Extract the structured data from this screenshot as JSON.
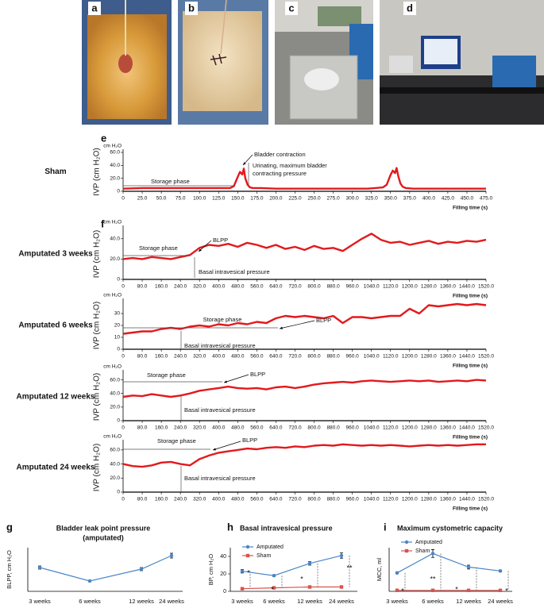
{
  "photos": [
    {
      "label": "a"
    },
    {
      "label": "b"
    },
    {
      "label": "c"
    },
    {
      "label": "d"
    }
  ],
  "chart_data": [
    {
      "type": "line",
      "panel": "e",
      "row_label": "Sham",
      "ylabel": "IVP (cm H₂O)",
      "yunit": "cm H₂O",
      "xlabel": "Filling time (s)",
      "color": "#e3191c",
      "x": [
        0,
        25,
        50,
        75,
        100,
        125,
        140,
        145,
        150,
        153,
        156,
        158,
        160,
        163,
        166,
        170,
        180,
        200,
        225,
        250,
        275,
        300,
        320,
        330,
        340,
        345,
        350,
        353,
        356,
        358,
        360,
        363,
        366,
        370,
        380,
        400,
        425,
        450,
        475
      ],
      "values": [
        4,
        5,
        5,
        5,
        5,
        5,
        5,
        8,
        22,
        30,
        26,
        35,
        20,
        10,
        6,
        5,
        5,
        4,
        4,
        4,
        4,
        4,
        4,
        5,
        6,
        10,
        25,
        32,
        28,
        36,
        24,
        12,
        7,
        5,
        4,
        4,
        4,
        4,
        4
      ],
      "xlim": [
        0,
        475
      ],
      "xticks": [
        0,
        {
          "value": 25,
          "label": "25.0"
        },
        {
          "value": 50,
          "label": "50.0"
        },
        {
          "value": 75,
          "label": "75.0"
        },
        {
          "value": 100,
          "label": "100.0"
        },
        {
          "value": 125,
          "label": "125.0"
        },
        {
          "value": 150,
          "label": "150.0"
        },
        {
          "value": 175,
          "label": "175.0"
        },
        {
          "value": 200,
          "label": "200.0"
        },
        {
          "value": 225,
          "label": "225.0"
        },
        {
          "value": 250,
          "label": "250.0"
        },
        {
          "value": 275,
          "label": "275.0"
        },
        {
          "value": 300,
          "label": "300.0"
        },
        {
          "value": 325,
          "label": "325.0"
        },
        {
          "value": 350,
          "label": "350.0"
        },
        {
          "value": 375,
          "label": "375.0"
        },
        {
          "value": 400,
          "label": "400.0"
        },
        {
          "value": 425,
          "label": "425.0"
        },
        {
          "value": 450,
          "label": "450.0"
        },
        {
          "value": 475,
          "label": "475.0"
        }
      ],
      "ylim": [
        0,
        60
      ],
      "yticks": [
        0,
        {
          "value": 20,
          "label": "20.0"
        },
        {
          "value": 40,
          "label": "40.0"
        },
        {
          "value": 60,
          "label": "60.0"
        }
      ],
      "annotations": [
        "Bladder contraction",
        "Urinating, maximum bladder",
        "contracting pressure",
        "Storage phase"
      ]
    },
    {
      "type": "line",
      "panel": "f",
      "row_label": "Amputated 3 weeks",
      "ylabel": "IVP (cm H₂O)",
      "yunit": "cm H₂O",
      "xlabel": "Filling time (s)",
      "color": "#e3191c",
      "x": [
        0,
        40,
        80,
        120,
        160,
        200,
        240,
        280,
        320,
        360,
        400,
        440,
        480,
        520,
        560,
        600,
        640,
        680,
        720,
        760,
        800,
        840,
        880,
        920,
        960,
        1000,
        1040,
        1080,
        1120,
        1160,
        1200,
        1240,
        1280,
        1320,
        1360,
        1400,
        1440,
        1480,
        1520
      ],
      "values": [
        20,
        21,
        20,
        22,
        21,
        20,
        22,
        24,
        31,
        34,
        33,
        35,
        32,
        36,
        34,
        31,
        34,
        30,
        32,
        29,
        33,
        30,
        31,
        28,
        34,
        40,
        45,
        39,
        36,
        37,
        34,
        36,
        38,
        35,
        37,
        36,
        38,
        37,
        39
      ],
      "xlim": [
        0,
        1520
      ],
      "xticks": [
        0,
        {
          "value": 80,
          "label": "80.0"
        },
        {
          "value": 160,
          "label": "160.0"
        },
        {
          "value": 240,
          "label": "240.0"
        },
        {
          "value": 320,
          "label": "320.0"
        },
        {
          "value": 400,
          "label": "400.0"
        },
        {
          "value": 480,
          "label": "480.0"
        },
        {
          "value": 560,
          "label": "560.0"
        },
        {
          "value": 640,
          "label": "640.0"
        },
        {
          "value": 720,
          "label": "720.0"
        },
        {
          "value": 800,
          "label": "800.0"
        },
        {
          "value": 880,
          "label": "880.0"
        },
        {
          "value": 960,
          "label": "960.0"
        },
        {
          "value": 1040,
          "label": "1040.0"
        },
        {
          "value": 1120,
          "label": "1120.0"
        },
        {
          "value": 1200,
          "label": "1200.0"
        },
        {
          "value": 1280,
          "label": "1280.0"
        },
        {
          "value": 1360,
          "label": "1360.0"
        },
        {
          "value": 1440,
          "label": "1440.0"
        },
        {
          "value": 1520,
          "label": "1520.0"
        }
      ],
      "ylim": [
        0,
        50
      ],
      "yticks": [
        0,
        {
          "value": 20,
          "label": "20.0"
        },
        {
          "value": 40,
          "label": "40.0"
        }
      ],
      "annotations": [
        "Storage phase",
        "BLPP",
        "Basal intravesical pressure"
      ]
    },
    {
      "type": "line",
      "row_label": "Amputated 6 weeks",
      "ylabel": "IVP (cm H₂O)",
      "yunit": "cm H₂O",
      "xlabel": "Filling time (s)",
      "color": "#e3191c",
      "x": [
        0,
        40,
        80,
        120,
        160,
        200,
        240,
        280,
        320,
        360,
        400,
        440,
        480,
        520,
        560,
        600,
        640,
        680,
        720,
        760,
        800,
        840,
        880,
        920,
        960,
        1000,
        1040,
        1080,
        1120,
        1160,
        1200,
        1240,
        1280,
        1320,
        1360,
        1400,
        1440,
        1480,
        1520
      ],
      "values": [
        13,
        14,
        15,
        15,
        17,
        18,
        17,
        19,
        20,
        19,
        21,
        20,
        22,
        21,
        23,
        22,
        26,
        28,
        27,
        28,
        27,
        26,
        28,
        22,
        27,
        27,
        26,
        27,
        28,
        28,
        34,
        30,
        37,
        36,
        37,
        38,
        37,
        38,
        37
      ],
      "xlim": [
        0,
        1520
      ],
      "xticks": [
        0,
        {
          "value": 80,
          "label": "80.0"
        },
        {
          "value": 160,
          "label": "160.0"
        },
        {
          "value": 240,
          "label": "240.0"
        },
        {
          "value": 320,
          "label": "320.0"
        },
        {
          "value": 400,
          "label": "400.0"
        },
        {
          "value": 480,
          "label": "480.0"
        },
        {
          "value": 560,
          "label": "560.0"
        },
        {
          "value": 640,
          "label": "640.0"
        },
        {
          "value": 720,
          "label": "720.0"
        },
        {
          "value": 800,
          "label": "800.0"
        },
        {
          "value": 880,
          "label": "880.0"
        },
        {
          "value": 960,
          "label": "960.0"
        },
        {
          "value": 1040,
          "label": "1040.0"
        },
        {
          "value": 1120,
          "label": "1120.0"
        },
        {
          "value": 1200,
          "label": "1200.0"
        },
        {
          "value": 1280,
          "label": "1280.0"
        },
        {
          "value": 1360,
          "label": "1360.0"
        },
        {
          "value": 1440,
          "label": "1440.0"
        },
        {
          "value": 1520,
          "label": "1520.0"
        }
      ],
      "ylim": [
        0,
        40
      ],
      "yticks": [
        0,
        10,
        20,
        30
      ],
      "annotations": [
        "Storage phase",
        "BLPP",
        "Basal intravesical pressure"
      ]
    },
    {
      "type": "line",
      "row_label": "Amputated 12 weeks",
      "ylabel": "IVP (cm H₂O)",
      "yunit": "cm H₂O",
      "xlabel": "Filling time (s)",
      "color": "#e3191c",
      "x": [
        0,
        40,
        80,
        120,
        160,
        200,
        240,
        280,
        320,
        360,
        400,
        440,
        480,
        520,
        560,
        600,
        640,
        680,
        720,
        760,
        800,
        840,
        880,
        920,
        960,
        1000,
        1040,
        1080,
        1120,
        1160,
        1200,
        1240,
        1280,
        1320,
        1360,
        1400,
        1440,
        1480,
        1520
      ],
      "values": [
        35,
        37,
        36,
        39,
        37,
        35,
        37,
        40,
        44,
        46,
        48,
        50,
        48,
        47,
        48,
        46,
        49,
        50,
        48,
        50,
        53,
        55,
        56,
        57,
        56,
        58,
        59,
        58,
        57,
        58,
        59,
        58,
        59,
        57,
        58,
        59,
        58,
        60,
        59
      ],
      "xlim": [
        0,
        1520
      ],
      "xticks": [
        0,
        {
          "value": 80,
          "label": "80.0"
        },
        {
          "value": 160,
          "label": "160.0"
        },
        {
          "value": 240,
          "label": "240.0"
        },
        {
          "value": 320,
          "label": "320.0"
        },
        {
          "value": 400,
          "label": "400.0"
        },
        {
          "value": 480,
          "label": "480.0"
        },
        {
          "value": 560,
          "label": "560.0"
        },
        {
          "value": 640,
          "label": "640.0"
        },
        {
          "value": 720,
          "label": "720.0"
        },
        {
          "value": 800,
          "label": "800.0"
        },
        {
          "value": 880,
          "label": "880.0"
        },
        {
          "value": 960,
          "label": "960.0"
        },
        {
          "value": 1040,
          "label": "1040.0"
        },
        {
          "value": 1120,
          "label": "1120.0"
        },
        {
          "value": 1200,
          "label": "1200.0"
        },
        {
          "value": 1280,
          "label": "1280.0"
        },
        {
          "value": 1360,
          "label": "1360.0"
        },
        {
          "value": 1440,
          "label": "1440.0"
        },
        {
          "value": 1520,
          "label": "1520.0"
        }
      ],
      "ylim": [
        0,
        70
      ],
      "yticks": [
        0,
        {
          "value": 20,
          "label": "20.0"
        },
        {
          "value": 40,
          "label": "40.0"
        },
        {
          "value": 60,
          "label": "60.0"
        }
      ],
      "annotations": [
        "Storage phase",
        "BLPP",
        "Basal intravesical pressure"
      ]
    },
    {
      "type": "line",
      "row_label": "Amputated 24 weeks",
      "ylabel": "IVP (cm H₂O)",
      "yunit": "cm H₂O",
      "xlabel": "Filling time (s)",
      "color": "#e3191c",
      "x": [
        0,
        40,
        80,
        120,
        160,
        200,
        240,
        280,
        320,
        360,
        400,
        440,
        480,
        520,
        560,
        600,
        640,
        680,
        720,
        760,
        800,
        840,
        880,
        920,
        960,
        1000,
        1040,
        1080,
        1120,
        1160,
        1200,
        1240,
        1280,
        1320,
        1360,
        1400,
        1440,
        1480,
        1520
      ],
      "values": [
        40,
        37,
        36,
        38,
        42,
        43,
        40,
        38,
        47,
        52,
        56,
        58,
        60,
        62,
        61,
        63,
        64,
        63,
        65,
        64,
        66,
        67,
        66,
        68,
        67,
        66,
        67,
        66,
        67,
        66,
        65,
        66,
        67,
        66,
        67,
        66,
        67,
        68,
        68
      ],
      "xlim": [
        0,
        1520
      ],
      "xticks": [
        0,
        {
          "value": 80,
          "label": "80.0"
        },
        {
          "value": 160,
          "label": "160.0"
        },
        {
          "value": 240,
          "label": "240.0"
        },
        {
          "value": 320,
          "label": "320.0"
        },
        {
          "value": 400,
          "label": "400.0"
        },
        {
          "value": 480,
          "label": "480.0"
        },
        {
          "value": 560,
          "label": "560.0"
        },
        {
          "value": 640,
          "label": "640.0"
        },
        {
          "value": 720,
          "label": "720.0"
        },
        {
          "value": 800,
          "label": "800.0"
        },
        {
          "value": 880,
          "label": "880.0"
        },
        {
          "value": 960,
          "label": "960.0"
        },
        {
          "value": 1040,
          "label": "1040.0"
        },
        {
          "value": 1120,
          "label": "1120.0"
        },
        {
          "value": 1200,
          "label": "1200.0"
        },
        {
          "value": 1280,
          "label": "1280.0"
        },
        {
          "value": 1360,
          "label": "1360.0"
        },
        {
          "value": 1440,
          "label": "1440.0"
        },
        {
          "value": 1520,
          "label": "1520.0"
        }
      ],
      "ylim": [
        0,
        70
      ],
      "yticks": [
        0,
        {
          "value": 20,
          "label": "20.0"
        },
        {
          "value": 40,
          "label": "40.0"
        },
        {
          "value": 60,
          "label": "60.0"
        }
      ],
      "annotations": [
        "Storage phase",
        "BLPP",
        "Basal intravesical pressure"
      ]
    },
    {
      "type": "line",
      "panel": "g",
      "title": "Bladder leak point pressure",
      "subtitle": "(amputated)",
      "ylabel": "BLPP, cm H₂O",
      "categories": [
        "3 weeks",
        "6 weeks",
        "12 weeks",
        "24 weeks"
      ],
      "series": [
        {
          "color": "#4a86c8",
          "values": [
            30,
            13,
            28,
            45
          ],
          "errors": [
            2,
            1,
            2,
            3
          ]
        }
      ],
      "ylim": [
        0,
        55
      ]
    },
    {
      "type": "line",
      "panel": "h",
      "title": "Basal intravesical pressure",
      "ylabel": "BP, cm H₂O",
      "categories": [
        "3 weeks",
        "6 weeks",
        "12 weeks",
        "24 weeks"
      ],
      "series": [
        {
          "name": "Amputated",
          "color": "#4a86c8",
          "values": [
            23,
            18,
            32,
            41
          ],
          "errors": [
            2,
            1,
            2,
            3
          ]
        },
        {
          "name": "Sham",
          "color": "#d9534f",
          "values": [
            3,
            4,
            5,
            5
          ]
        }
      ],
      "ylim": [
        0,
        50
      ],
      "yticks": [
        0,
        20,
        40
      ],
      "legend": "upper left",
      "annotations": [
        "*",
        "*",
        "*",
        "**"
      ]
    },
    {
      "type": "line",
      "panel": "i",
      "title": "Maximum cystometric capacity",
      "ylabel": "MCC, ml",
      "categories": [
        "3 weeks",
        "6 weeks",
        "12 weeks",
        "24 weeks"
      ],
      "series": [
        {
          "name": "Amputated",
          "color": "#4a86c8",
          "values": [
            19,
            39,
            25,
            21
          ],
          "errors": [
            1,
            4,
            2,
            1
          ]
        },
        {
          "name": "Sham",
          "color": "#d9534f",
          "values": [
            1,
            1,
            1,
            1
          ]
        }
      ],
      "ylim": [
        0,
        45
      ],
      "legend": "upper left",
      "annotations": [
        "*",
        "**",
        "*",
        "*"
      ]
    }
  ]
}
